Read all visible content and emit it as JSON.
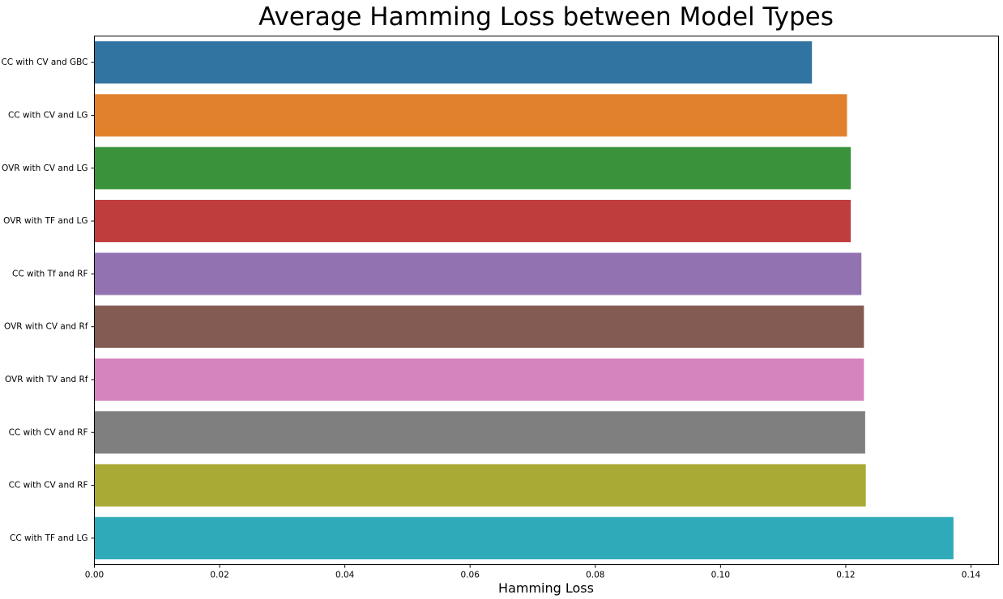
{
  "chart_data": {
    "type": "bar",
    "orientation": "horizontal",
    "title": "Average Hamming Loss between Model Types",
    "xlabel": "Hamming Loss",
    "ylabel": "",
    "xlim": [
      0,
      0.1444
    ],
    "x_ticks": [
      0,
      0.02,
      0.04,
      0.06,
      0.08,
      0.1,
      0.12,
      0.14
    ],
    "x_tick_labels": [
      "0.00",
      "0.02",
      "0.04",
      "0.06",
      "0.08",
      "0.10",
      "0.12",
      "0.14"
    ],
    "grid": false,
    "categories": [
      "CC with CV and GBC",
      "CC with CV and LG",
      "OVR with CV and LG",
      "OVR with TF and LG",
      "CC with Tf and RF",
      "OVR with CV and Rf",
      "OVR with TV and Rf",
      "CC with CV and RF",
      "CC with CV and RF",
      "CC with TF and LG"
    ],
    "values": [
      0.1146,
      0.1202,
      0.1208,
      0.1208,
      0.1225,
      0.1229,
      0.1229,
      0.1231,
      0.1232,
      0.1372
    ],
    "colors": [
      "#3274a1",
      "#e1812c",
      "#3a923a",
      "#c03d3e",
      "#9372b2",
      "#845b53",
      "#d684bd",
      "#7f7f7f",
      "#a9aa35",
      "#2eaab8"
    ]
  }
}
